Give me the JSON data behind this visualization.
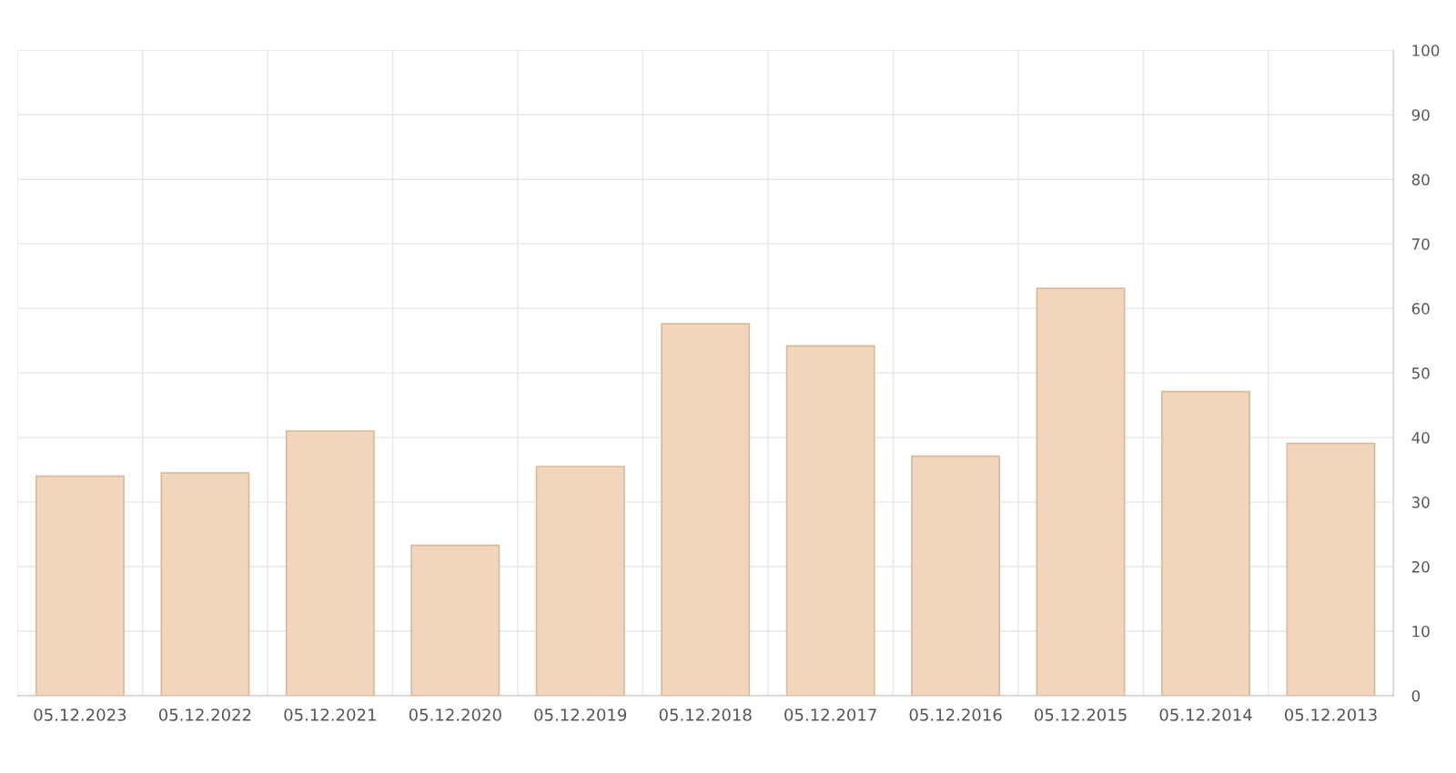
{
  "chart_data": {
    "type": "bar",
    "categories": [
      "05.12.2023",
      "05.12.2022",
      "05.12.2021",
      "05.12.2020",
      "05.12.2019",
      "05.12.2018",
      "05.12.2017",
      "05.12.2016",
      "05.12.2015",
      "05.12.2014",
      "05.12.2013"
    ],
    "values": [
      34,
      34.5,
      41,
      23.3,
      35.5,
      57.6,
      54.2,
      37.1,
      63.1,
      47.1,
      39.1
    ],
    "color": "#f2d5bd",
    "ylim": [
      0,
      100
    ],
    "yticks": [
      0,
      10,
      20,
      30,
      40,
      50,
      60,
      70,
      80,
      90,
      100
    ],
    "grid": true
  }
}
